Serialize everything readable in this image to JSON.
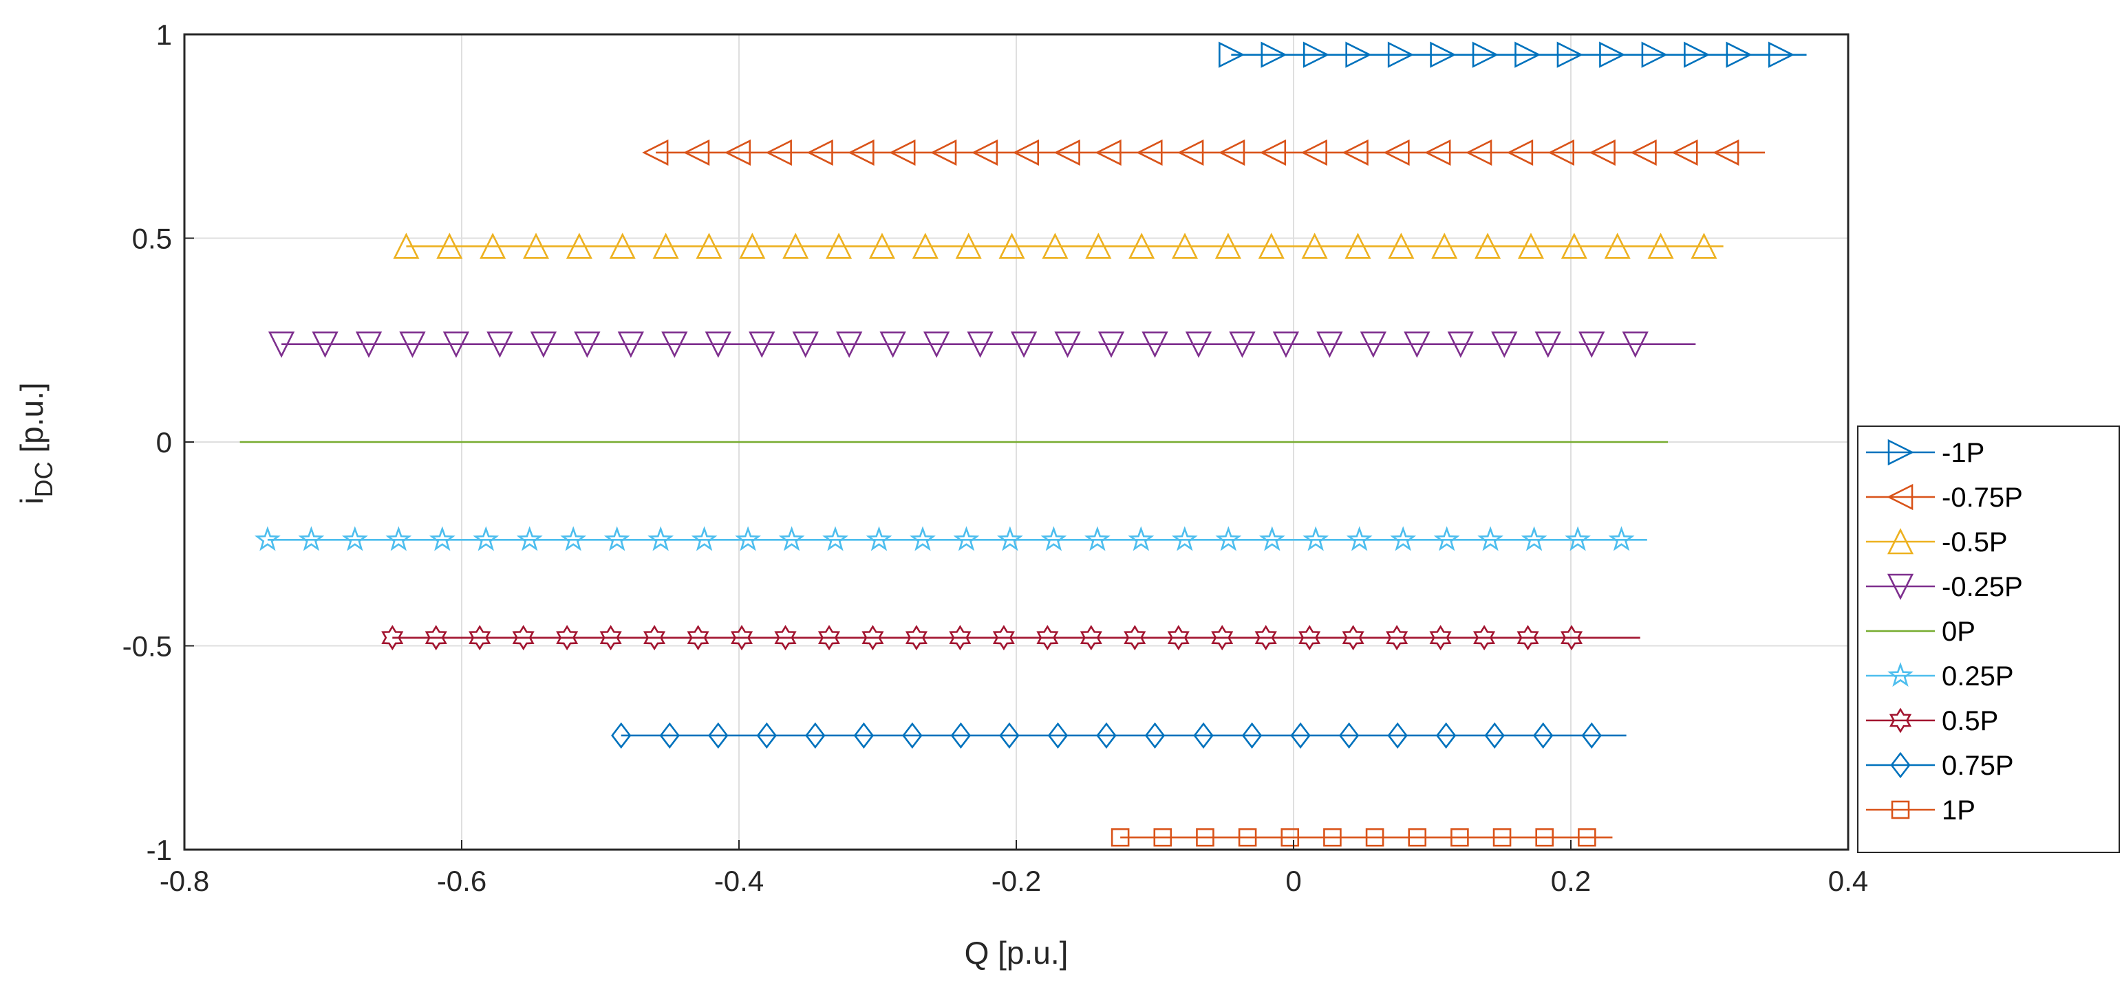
{
  "chart_data": {
    "type": "line",
    "title": "",
    "xlabel": "Q [p.u.]",
    "ylabel_main": "i",
    "ylabel_sub": "DC",
    "ylabel_tail": " [p.u.]",
    "xlim": [
      -0.8,
      0.4
    ],
    "ylim": [
      -1,
      1
    ],
    "xticks": [
      -0.8,
      -0.6,
      -0.4,
      -0.2,
      0,
      0.2,
      0.4
    ],
    "xtick_labels": [
      "-0.8",
      "-0.6",
      "-0.4",
      "-0.2",
      "0",
      "0.2",
      "0.4"
    ],
    "yticks": [
      -1,
      -0.5,
      0,
      0.5,
      1
    ],
    "ytick_labels": [
      "-1",
      "-0.5",
      "0",
      "0.5",
      "1"
    ],
    "grid": true,
    "legend_position": "outside-right",
    "series": [
      {
        "name": "-1P",
        "color": "#0072BD",
        "marker": "triangle-right",
        "y": 0.95,
        "x_start": -0.045,
        "x_end": 0.37,
        "step": 0.0305,
        "marker_end": 0.37
      },
      {
        "name": "-0.75P",
        "color": "#D95319",
        "marker": "triangle-left",
        "y": 0.71,
        "x_start": -0.46,
        "x_end": 0.34,
        "step": 0.0297,
        "marker_end": 0.315
      },
      {
        "name": "-0.5P",
        "color": "#EDB120",
        "marker": "triangle-up",
        "y": 0.48,
        "x_start": -0.64,
        "x_end": 0.31,
        "step": 0.0312,
        "marker_end": 0.31
      },
      {
        "name": "-0.25P",
        "color": "#7E2F8E",
        "marker": "triangle-down",
        "y": 0.24,
        "x_start": -0.73,
        "x_end": 0.29,
        "step": 0.0315,
        "marker_end": 0.275
      },
      {
        "name": "0P",
        "color": "#77AC30",
        "marker": "none",
        "y": 0.0,
        "x_start": -0.76,
        "x_end": 0.27,
        "step": 0,
        "marker_end": 0.27
      },
      {
        "name": "0.25P",
        "color": "#4DBEEE",
        "marker": "star",
        "y": -0.24,
        "x_start": -0.74,
        "x_end": 0.255,
        "step": 0.0315,
        "marker_end": 0.24
      },
      {
        "name": "0.5P",
        "color": "#A2142F",
        "marker": "hexagram",
        "y": -0.48,
        "x_start": -0.65,
        "x_end": 0.25,
        "step": 0.0315,
        "marker_end": 0.225
      },
      {
        "name": "0.75P",
        "color": "#0072BD",
        "marker": "diamond",
        "y": -0.72,
        "x_start": -0.485,
        "x_end": 0.24,
        "step": 0.035,
        "marker_end": 0.24
      },
      {
        "name": "1P",
        "color": "#D95319",
        "marker": "square",
        "y": -0.97,
        "x_start": -0.125,
        "x_end": 0.23,
        "step": 0.0306,
        "marker_end": 0.23
      }
    ]
  }
}
